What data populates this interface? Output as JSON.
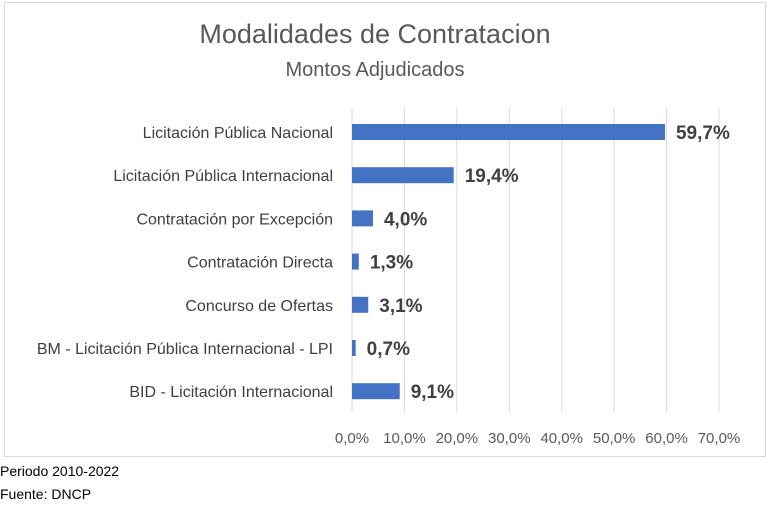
{
  "chart_data": {
    "type": "bar",
    "orientation": "horizontal",
    "title": "Modalidades de Contratacion",
    "subtitle": "Montos Adjudicados",
    "categories": [
      "Licitación Pública Nacional",
      "Licitación Pública Internacional",
      "Contratación por Excepción",
      "Contratación Directa",
      "Concurso de Ofertas",
      "BM - Licitación Pública Internacional - LPI",
      "BID - Licitación Internacional"
    ],
    "values": [
      59.7,
      19.4,
      4.0,
      1.3,
      3.1,
      0.7,
      9.1
    ],
    "value_labels": [
      "59,7%",
      "19,4%",
      "4,0%",
      "1,3%",
      "3,1%",
      "0,7%",
      "9,1%"
    ],
    "xlim": [
      0,
      70
    ],
    "xticks": [
      0,
      10,
      20,
      30,
      40,
      50,
      60,
      70
    ],
    "xtick_labels": [
      "0,0%",
      "10,0%",
      "20,0%",
      "30,0%",
      "40,0%",
      "50,0%",
      "60,0%",
      "70,0%"
    ],
    "gridlines": true,
    "xlabel": "",
    "ylabel": "",
    "bar_color": "#4472c4"
  },
  "footer": {
    "period": "Periodo 2010-2022",
    "source": "Fuente: DNCP"
  }
}
